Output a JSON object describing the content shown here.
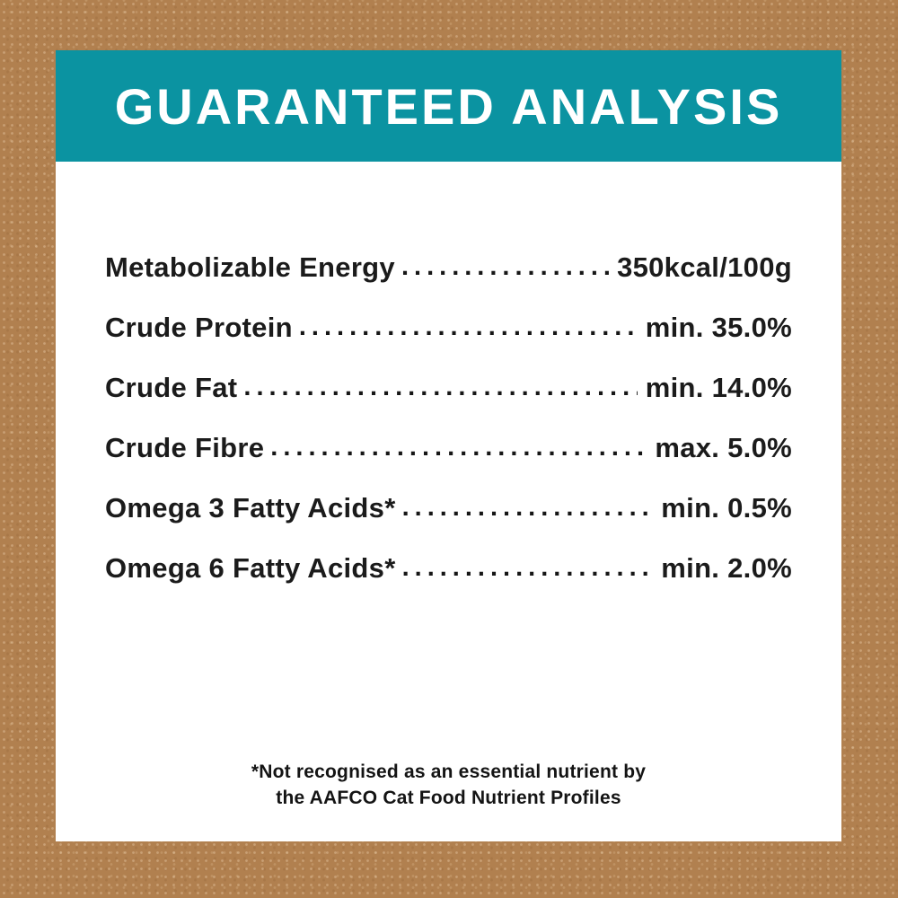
{
  "panel": {
    "background_color": "#b1804f",
    "card_background": "#ffffff",
    "text_color": "#1b1b1b"
  },
  "header": {
    "title": "GUARANTEED ANALYSIS",
    "background_color": "#0b93a1",
    "text_color": "#ffffff"
  },
  "analysis": {
    "rows": [
      {
        "label": "Metabolizable Energy",
        "value": "350kcal/100g"
      },
      {
        "label": "Crude Protein",
        "value": "min. 35.0%"
      },
      {
        "label": "Crude Fat",
        "value": "min. 14.0%"
      },
      {
        "label": "Crude Fibre",
        "value": "max. 5.0%"
      },
      {
        "label": "Omega 3 Fatty Acids*",
        "value": "min. 0.5%"
      },
      {
        "label": "Omega 6 Fatty Acids*",
        "value": "min. 2.0%"
      }
    ]
  },
  "footnote": {
    "line1": "*Not recognised as an essential nutrient by",
    "line2": "the AAFCO Cat Food Nutrient Profiles"
  }
}
